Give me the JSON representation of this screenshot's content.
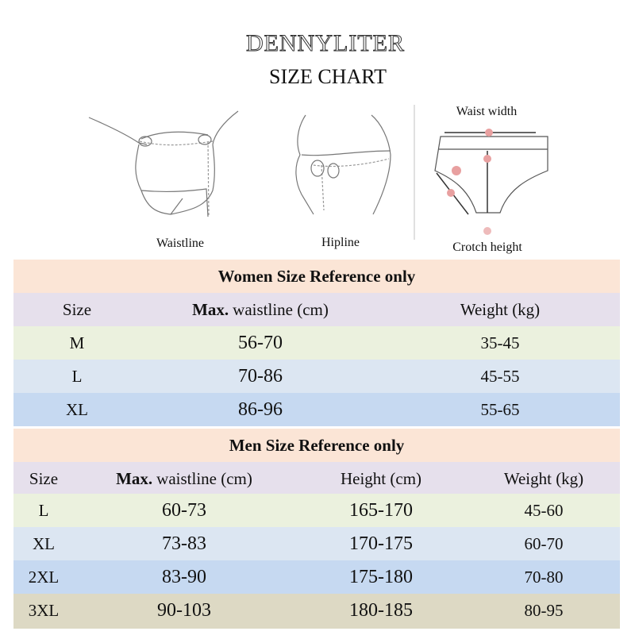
{
  "header": {
    "brand": "DENNYLITER",
    "title": "SIZE CHART"
  },
  "figures": {
    "waistline": "Waistline",
    "hipline": "Hipline",
    "waist_width": "Waist width",
    "crotch_height": "Crotch height"
  },
  "women": {
    "title": "Women Size Reference only",
    "headers": [
      "Size",
      {
        "bold": "Max.",
        "text": "waistline (cm)"
      },
      "Weight (kg)"
    ],
    "rows": [
      [
        "M",
        "56-70",
        "35-45"
      ],
      [
        "L",
        "70-86",
        "45-55"
      ],
      [
        "XL",
        "86-96",
        "55-65"
      ]
    ]
  },
  "men": {
    "title": "Men Size Reference only",
    "headers": [
      "Size",
      {
        "bold": "Max.",
        "text": "waistline (cm)"
      },
      "Height (cm)",
      "Weight (kg)"
    ],
    "rows": [
      [
        "L",
        "60-73",
        "165-170",
        "45-60"
      ],
      [
        "XL",
        "73-83",
        "170-175",
        "60-70"
      ],
      [
        "2XL",
        "83-90",
        "175-180",
        "70-80"
      ],
      [
        "3XL",
        "90-103",
        "180-185",
        "80-95"
      ]
    ]
  }
}
